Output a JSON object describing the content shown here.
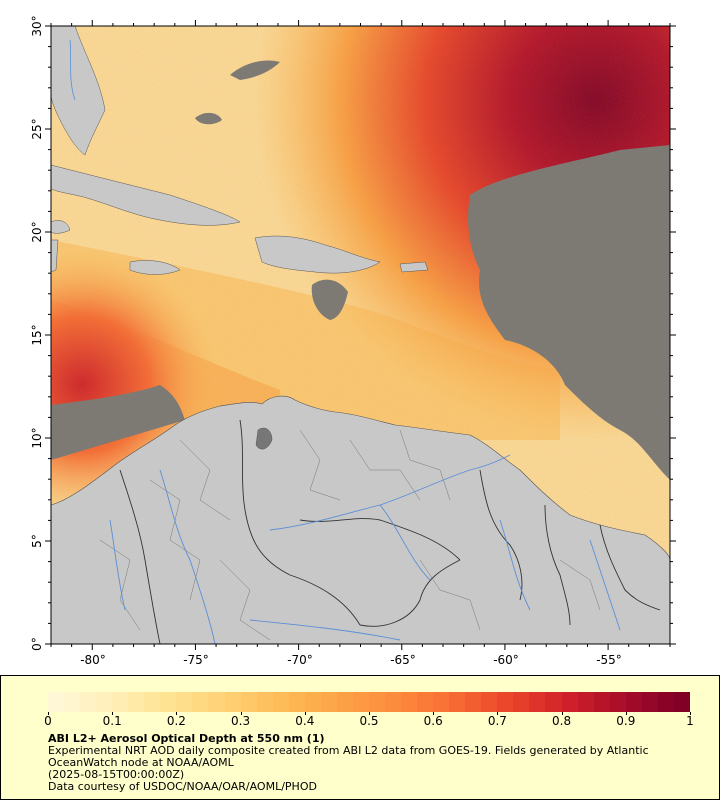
{
  "map": {
    "lon_ticks": [
      "-80°",
      "-75°",
      "-70°",
      "-65°",
      "-60°",
      "-55°"
    ],
    "lat_ticks": [
      "0°",
      "5°",
      "10°",
      "15°",
      "20°",
      "25°",
      "30°"
    ],
    "lon_range": [
      -82,
      -52
    ],
    "lat_range": [
      0,
      30
    ],
    "colors": {
      "ocean_nodata": "#777777",
      "land": "#c8c8c8",
      "border": "#333333",
      "river": "#5b8fd6"
    }
  },
  "legend": {
    "title": "ABI L2+ Aerosol Optical Depth at 550 nm (1)",
    "description": "Experimental NRT AOD daily composite created from ABI L2 data from GOES-19. Fields generated by Atlantic OceanWatch node at NOAA/AOML",
    "timestamp": "(2025-08-15T00:00:00Z)",
    "credit": "Data courtesy of USDOC/NOAA/OAR/AOML/PHOD",
    "colorbar_ticks": [
      "0",
      "0.1",
      "0.2",
      "0.3",
      "0.4",
      "0.5",
      "0.6",
      "0.7",
      "0.8",
      "0.9",
      "1"
    ],
    "colorbar_range": [
      0,
      1
    ],
    "colormap": [
      "#fff7d6",
      "#ffefb8",
      "#fee391",
      "#fed074",
      "#fdbb55",
      "#fca246",
      "#fc8a3c",
      "#f86b34",
      "#e9442a",
      "#d0202a",
      "#a50c2a",
      "#800026"
    ]
  }
}
